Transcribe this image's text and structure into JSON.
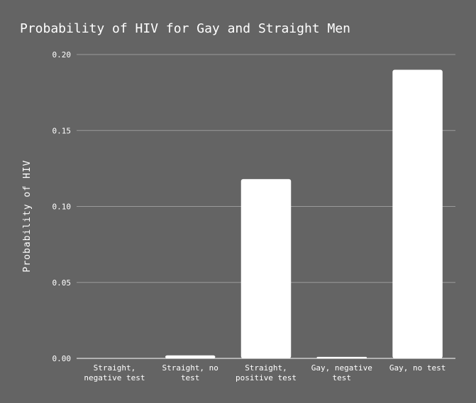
{
  "chart_data": {
    "type": "bar",
    "title": "Probability of HIV for Gay and Straight Men",
    "xlabel": "",
    "ylabel": "Probability of HIV",
    "categories": [
      [
        "Straight,",
        "negative test"
      ],
      [
        "Straight, no",
        "test"
      ],
      [
        "Straight,",
        "positive test"
      ],
      [
        "Gay, negative",
        "test"
      ],
      [
        "Gay, no test"
      ]
    ],
    "values": [
      0.0001,
      0.002,
      0.118,
      0.001,
      0.19
    ],
    "ylim": [
      0,
      0.2
    ],
    "yticks": [
      "0.00",
      "0.05",
      "0.10",
      "0.15",
      "0.20"
    ],
    "grid": true
  },
  "colors": {
    "background": "#646464",
    "bar": "#ffffff",
    "text": "#ffffff",
    "grid": "#9a9a9a"
  }
}
